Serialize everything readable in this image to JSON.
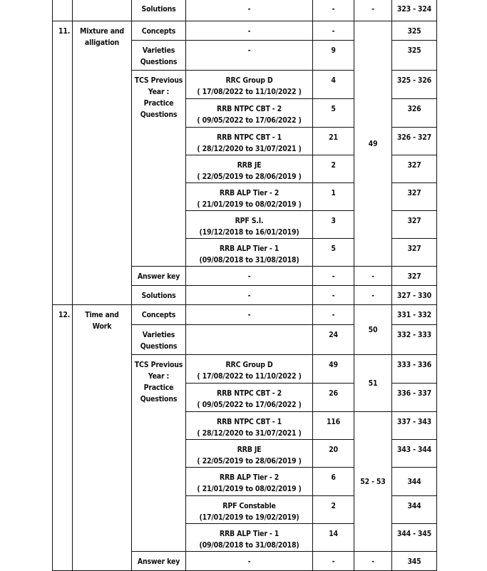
{
  "table": {
    "rows": [
      [
        {
          "t": ""
        },
        {
          "t": ""
        },
        {
          "t": "Solutions"
        },
        {
          "t": "-"
        },
        {
          "t": "-"
        },
        {
          "t": "-"
        },
        {
          "t": "323 - 324"
        }
      ],
      [
        {
          "t": "11.",
          "rs": 11,
          "c": "num"
        },
        {
          "t": "Mixture and alligation",
          "rs": 11
        },
        {
          "t": "Concepts"
        },
        {
          "t": "-"
        },
        {
          "t": "-"
        },
        {
          "t": "49",
          "rs": 9,
          "c": "mid"
        },
        {
          "t": "325"
        }
      ],
      [
        {
          "t": "Varieties Questions"
        },
        {
          "t": "-"
        },
        {
          "t": "9"
        },
        {
          "t": "325"
        }
      ],
      [
        {
          "t": "TCS Previous Year : Practice Questions",
          "rs": 7
        },
        {
          "t": "RRC Group D\n( 17/08/2022 to 11/10/2022 )"
        },
        {
          "t": "4"
        },
        {
          "t": "325 - 326"
        }
      ],
      [
        {
          "t": "RRB NTPC CBT - 2\n( 09/05/2022 to 17/06/2022 )"
        },
        {
          "t": "5"
        },
        {
          "t": "326"
        }
      ],
      [
        {
          "t": "RRB NTPC CBT - 1\n( 28/12/2020 to 31/07/2021 )"
        },
        {
          "t": "21"
        },
        {
          "t": "326 - 327"
        }
      ],
      [
        {
          "t": "RRB JE\n( 22/05/2019 to 28/06/2019 )"
        },
        {
          "t": "2"
        },
        {
          "t": "327"
        }
      ],
      [
        {
          "t": "RRB ALP Tier - 2\n( 21/01/2019 to 08/02/2019 )"
        },
        {
          "t": "1"
        },
        {
          "t": "327"
        }
      ],
      [
        {
          "t": "RPF S.I.\n(19/12/2018 to 16/01/2019)"
        },
        {
          "t": "3"
        },
        {
          "t": "327"
        }
      ],
      [
        {
          "t": "RRB ALP Tier - 1\n(09/08/2018 to 31/08/2018)"
        },
        {
          "t": "5"
        },
        {
          "t": "327"
        }
      ],
      [
        {
          "t": "Answer key"
        },
        {
          "t": "-"
        },
        {
          "t": "-"
        },
        {
          "t": "-"
        },
        {
          "t": "327"
        }
      ],
      [
        {
          "t": "Solutions"
        },
        {
          "t": "-"
        },
        {
          "t": "-"
        },
        {
          "t": "-"
        },
        {
          "t": "327 - 330"
        }
      ],
      [
        {
          "t": "12.",
          "rs": 11,
          "c": "num"
        },
        {
          "t": "Time and Work",
          "rs": 11
        },
        {
          "t": "Concepts"
        },
        {
          "t": "-"
        },
        {
          "t": "-"
        },
        {
          "t": "50",
          "rs": 2,
          "c": "mid"
        },
        {
          "t": "331 - 332"
        }
      ],
      [
        {
          "t": "Varieties Questions"
        },
        {
          "t": ""
        },
        {
          "t": "24"
        },
        {
          "t": "332 - 333"
        }
      ],
      [
        {
          "t": "TCS Previous Year : Practice Questions",
          "rs": 7
        },
        {
          "t": "RRC Group D\n( 17/08/2022 to 11/10/2022 )"
        },
        {
          "t": "49"
        },
        {
          "t": "51",
          "rs": 2,
          "c": "mid"
        },
        {
          "t": "333 - 336"
        }
      ],
      [
        {
          "t": "RRB NTPC CBT - 2\n( 09/05/2022 to 17/06/2022 )"
        },
        {
          "t": "26"
        },
        {
          "t": "336 - 337"
        }
      ],
      [
        {
          "t": "RRB NTPC CBT - 1\n( 28/12/2020 to 31/07/2021 )"
        },
        {
          "t": "116"
        },
        {
          "t": "52 - 53",
          "rs": 5,
          "c": "mid"
        },
        {
          "t": "337 - 343"
        }
      ],
      [
        {
          "t": "RRB JE\n( 22/05/2019 to 28/06/2019 )"
        },
        {
          "t": "20"
        },
        {
          "t": "343 - 344"
        }
      ],
      [
        {
          "t": "RRB ALP Tier - 2\n( 21/01/2019 to 08/02/2019 )"
        },
        {
          "t": "6"
        },
        {
          "t": "344",
          "c": "mid"
        }
      ],
      [
        {
          "t": "RPF Constable\n(17/01/2019 to 19/02/2019)"
        },
        {
          "t": "2"
        },
        {
          "t": "344"
        }
      ],
      [
        {
          "t": "RRB ALP Tier - 1\n(09/08/2018 to 31/08/2018)"
        },
        {
          "t": "14"
        },
        {
          "t": "344 - 345"
        }
      ],
      [
        {
          "t": "Answer key"
        },
        {
          "t": "-"
        },
        {
          "t": "-"
        },
        {
          "t": "-"
        },
        {
          "t": "345"
        }
      ]
    ]
  }
}
